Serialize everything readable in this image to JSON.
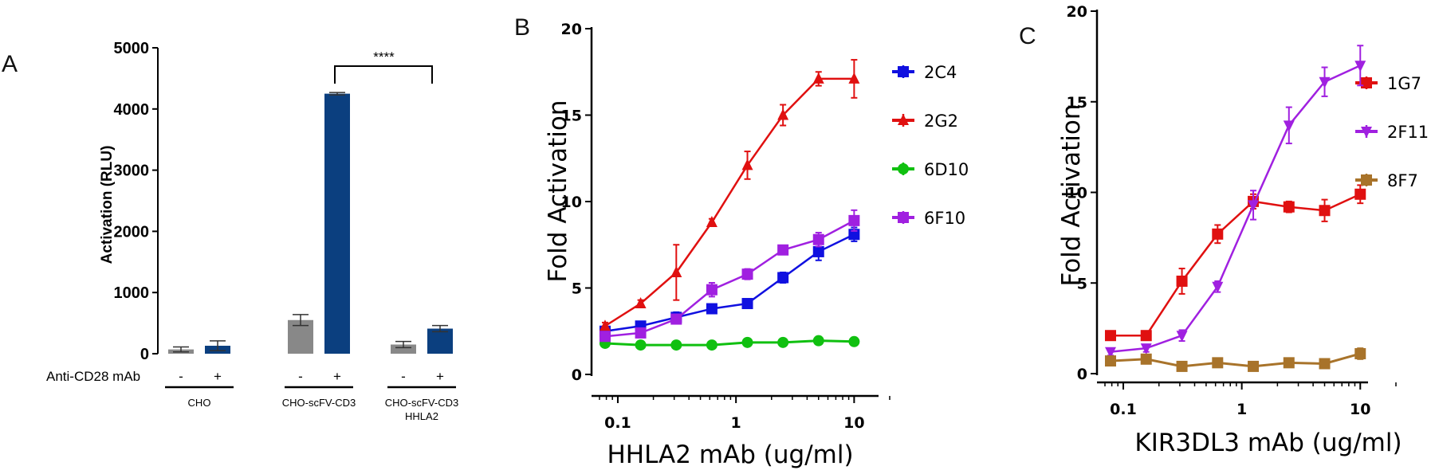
{
  "chart_data": [
    {
      "panel": "A",
      "type": "bar",
      "ylabel": "Activation (RLU)",
      "ylim": [
        0,
        5000
      ],
      "yticks": [
        0,
        1000,
        2000,
        3000,
        4000,
        5000
      ],
      "treatment_label": "Anti-CD28 mAb",
      "groups": [
        {
          "label_lines": [
            "CHO"
          ],
          "bars": [
            {
              "sign": "-",
              "value": 70,
              "error": 40,
              "color": "#888888"
            },
            {
              "sign": "+",
              "value": 130,
              "error": 80,
              "color": "#0b3f7f"
            }
          ]
        },
        {
          "label_lines": [
            "CHO-scFV-CD3"
          ],
          "bars": [
            {
              "sign": "-",
              "value": 550,
              "error": 90,
              "color": "#888888"
            },
            {
              "sign": "+",
              "value": 4250,
              "error": 20,
              "color": "#0b3f7f"
            }
          ]
        },
        {
          "label_lines": [
            "CHO-scFV-CD3",
            "HHLA2"
          ],
          "bars": [
            {
              "sign": "-",
              "value": 150,
              "error": 50,
              "color": "#888888"
            },
            {
              "sign": "+",
              "value": 410,
              "error": 50,
              "color": "#0b3f7f"
            }
          ]
        }
      ],
      "significance": {
        "label": "****",
        "y": 4700
      }
    },
    {
      "panel": "B",
      "type": "line",
      "xscale": "log",
      "xlim": [
        0.07,
        20
      ],
      "ylim": [
        0,
        20
      ],
      "xticks": [
        0.1,
        1,
        10
      ],
      "xtick_labels": [
        "0.1",
        "1",
        "10"
      ],
      "yticks": [
        0,
        5,
        10,
        15,
        20
      ],
      "xlabel": "HHLA2 mAb (ug/ml)",
      "ylabel": "Fold Activation",
      "x": [
        0.078,
        0.156,
        0.3125,
        0.625,
        1.25,
        2.5,
        5,
        10
      ],
      "series": [
        {
          "name": "2C4",
          "color": "#1010e0",
          "marker": "square",
          "values": [
            2.5,
            2.8,
            3.3,
            3.8,
            4.1,
            5.6,
            7.1,
            8.1
          ],
          "errors": [
            0.2,
            0.2,
            0.3,
            0.2,
            0.2,
            0.3,
            0.5,
            0.4
          ]
        },
        {
          "name": "2G2",
          "color": "#e01010",
          "marker": "triangle",
          "values": [
            2.8,
            4.1,
            5.9,
            8.8,
            12.1,
            15.0,
            17.1,
            17.1
          ],
          "errors": [
            0.2,
            0.2,
            1.6,
            0.2,
            0.8,
            0.6,
            0.4,
            1.1
          ]
        },
        {
          "name": "6D10",
          "color": "#10c010",
          "marker": "circle",
          "values": [
            1.8,
            1.7,
            1.7,
            1.7,
            1.85,
            1.85,
            1.95,
            1.9
          ],
          "errors": [
            0.1,
            0.1,
            0.1,
            0.1,
            0.1,
            0.1,
            0.1,
            0.1
          ]
        },
        {
          "name": "6F10",
          "color": "#a020e0",
          "marker": "square",
          "values": [
            2.2,
            2.4,
            3.2,
            4.9,
            5.8,
            7.2,
            7.8,
            8.9
          ],
          "errors": [
            0.2,
            0.2,
            0.2,
            0.4,
            0.3,
            0.2,
            0.4,
            0.6
          ]
        }
      ]
    },
    {
      "panel": "C",
      "type": "line",
      "xscale": "log",
      "xlim": [
        0.07,
        20
      ],
      "ylim": [
        0,
        20
      ],
      "xticks": [
        0.1,
        1,
        10
      ],
      "xtick_labels": [
        "0.1",
        "1",
        "10"
      ],
      "yticks": [
        0,
        5,
        10,
        15,
        20
      ],
      "xlabel": "KIR3DL3 mAb (ug/ml)",
      "ylabel": "Fold Activation",
      "x": [
        0.078,
        0.156,
        0.3125,
        0.625,
        1.25,
        2.5,
        5,
        10
      ],
      "series": [
        {
          "name": "1G7",
          "color": "#e01010",
          "marker": "square",
          "values": [
            2.1,
            2.1,
            5.1,
            7.7,
            9.5,
            9.2,
            9.0,
            9.9
          ],
          "errors": [
            0.2,
            0.2,
            0.7,
            0.5,
            0.4,
            0.3,
            0.6,
            0.5
          ]
        },
        {
          "name": "2F11",
          "color": "#a020e0",
          "marker": "triangle-down",
          "values": [
            1.2,
            1.4,
            2.1,
            4.8,
            9.3,
            13.7,
            16.1,
            17.0
          ],
          "errors": [
            0.2,
            0.2,
            0.3,
            0.3,
            0.8,
            1.0,
            0.8,
            1.1
          ]
        },
        {
          "name": "8F7",
          "color": "#a8732a",
          "marker": "square",
          "values": [
            0.7,
            0.8,
            0.4,
            0.6,
            0.4,
            0.6,
            0.55,
            1.1
          ],
          "errors": [
            0.2,
            0.2,
            0.2,
            0.2,
            0.2,
            0.2,
            0.2,
            0.3
          ]
        }
      ]
    }
  ]
}
